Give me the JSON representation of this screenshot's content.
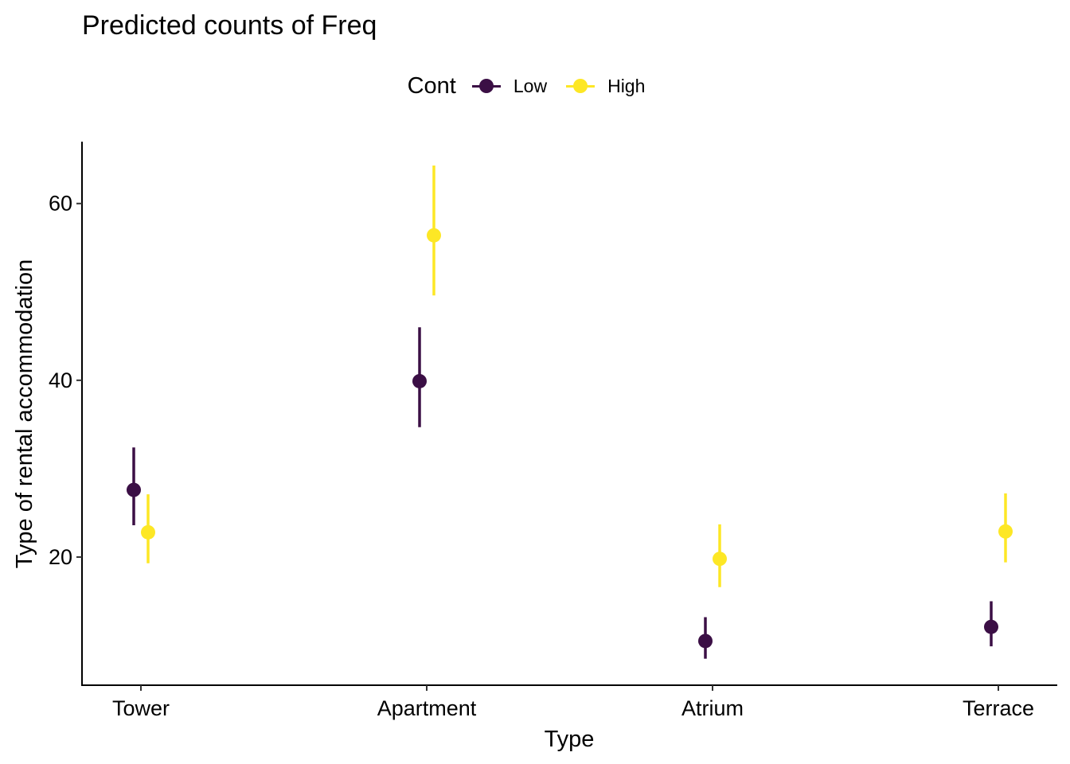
{
  "title": "Predicted counts of Freq",
  "legend": {
    "title": "Cont",
    "items": [
      {
        "label": "Low",
        "color": "#3b0f45"
      },
      {
        "label": "High",
        "color": "#fde725"
      }
    ]
  },
  "chart_data": {
    "type": "scatter",
    "title": "Predicted counts of Freq",
    "xlabel": "Type",
    "ylabel": "Type of rental accommodation",
    "categories": [
      "Tower",
      "Apartment",
      "Atrium",
      "Terrace"
    ],
    "ylim": [
      5.5,
      67
    ],
    "yticks": [
      20,
      40,
      60
    ],
    "grid": false,
    "legend_position": "top",
    "series": [
      {
        "name": "Low",
        "color": "#3b0f45",
        "values": [
          27.6,
          39.9,
          10.5,
          12.1
        ],
        "lower": [
          23.6,
          34.7,
          8.5,
          9.9
        ],
        "upper": [
          32.4,
          46.0,
          13.2,
          15.0
        ]
      },
      {
        "name": "High",
        "color": "#fde725",
        "values": [
          22.8,
          56.4,
          19.8,
          22.9
        ],
        "lower": [
          19.3,
          49.6,
          16.6,
          19.4
        ],
        "upper": [
          27.1,
          64.3,
          23.7,
          27.2
        ]
      }
    ]
  }
}
